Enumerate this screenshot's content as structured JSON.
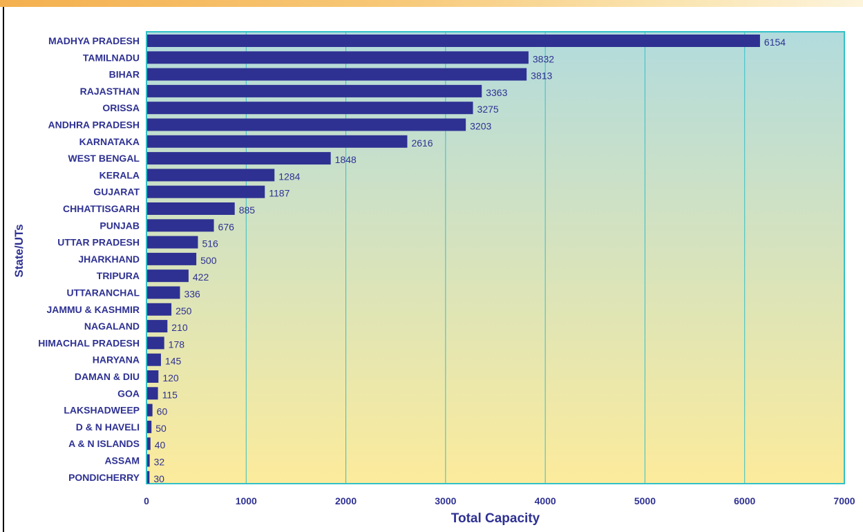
{
  "chart_data": {
    "type": "bar",
    "orientation": "horizontal",
    "title": "",
    "xlabel": "Total Capacity",
    "ylabel": "State/UTs",
    "xlim": [
      0,
      7000
    ],
    "xticks": [
      0,
      1000,
      2000,
      3000,
      4000,
      5000,
      6000,
      7000
    ],
    "grid": true,
    "categories": [
      "MADHYA PRADESH",
      "TAMILNADU",
      "BIHAR",
      "RAJASTHAN",
      "ORISSA",
      "ANDHRA PRADESH",
      "KARNATAKA",
      "WEST BENGAL",
      "KERALA",
      "GUJARAT",
      "CHHATTISGARH",
      "PUNJAB",
      "UTTAR PRADESH",
      "JHARKHAND",
      "TRIPURA",
      "UTTARANCHAL",
      "JAMMU & KASHMIR",
      "NAGALAND",
      "HIMACHAL PRADESH",
      "HARYANA",
      "DAMAN & DIU",
      "GOA",
      "LAKSHADWEEP",
      "D & N HAVELI",
      "A & N ISLANDS",
      "ASSAM",
      "PONDICHERRY"
    ],
    "values": [
      6154,
      3832,
      3813,
      3363,
      3275,
      3203,
      2616,
      1848,
      1284,
      1187,
      885,
      676,
      516,
      500,
      422,
      336,
      250,
      210,
      178,
      145,
      120,
      115,
      60,
      50,
      40,
      32,
      30
    ],
    "colors": {
      "bar": "#2e3192",
      "text": "#2e3192",
      "grid": "#33c0c8",
      "plot_border": "#33c0c8",
      "background_top": "#b2dbdd",
      "background_bottom": "#fceb9c"
    }
  }
}
